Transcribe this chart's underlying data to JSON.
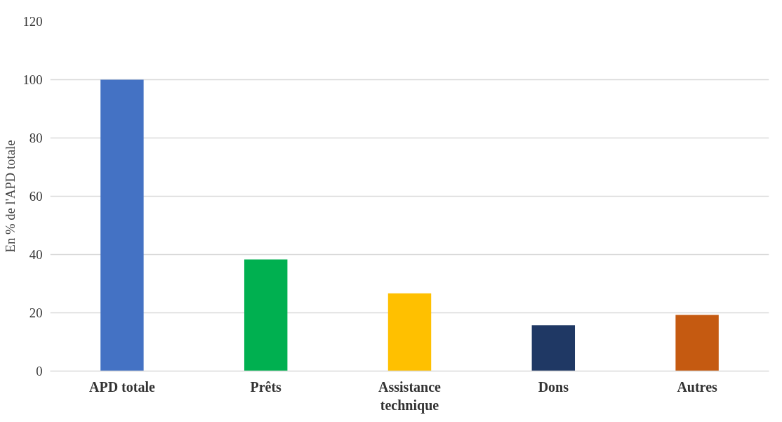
{
  "chart_data": {
    "type": "bar",
    "ylabel": "En % de l'APD totale",
    "categories": [
      "APD totale",
      "Prêts",
      "Assistance\ntechnique",
      "Dons",
      "Autres"
    ],
    "values": [
      100,
      38.3,
      26.7,
      15.7,
      19.3
    ],
    "colors": [
      "#4472c4",
      "#00b050",
      "#ffc000",
      "#1f3864",
      "#c55a11"
    ],
    "ylim": [
      0,
      120
    ],
    "yticks": [
      0,
      20,
      40,
      60,
      80,
      100,
      120
    ],
    "grid": "y"
  }
}
